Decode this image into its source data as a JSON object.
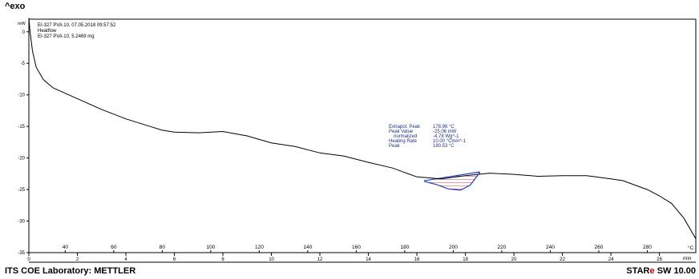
{
  "header": {
    "exo_label": "^exo"
  },
  "info": {
    "lines": [
      "EI-327 PVA 10, 07.05.2018 09:57:52",
      "Heatflow",
      "EI-327 PVA 10, 5.2469 mg"
    ]
  },
  "annotation": {
    "labels": [
      "Extrapol. Peak",
      "Peak Value",
      "normalized",
      "Heating Rate",
      "Peak"
    ],
    "values": [
      "178.96 °C",
      "-25.06 mW",
      "-4.78 Wg^-1",
      "10.00 °Cmin^-1",
      "190.53 °C"
    ]
  },
  "footer": {
    "left": "ITS COE Laboratory: METTLER",
    "right_prefix": "STAR",
    "right_mark": "e",
    "right_suffix": " SW 10.00"
  },
  "chart_data": {
    "type": "line",
    "ylabel": "mW",
    "ylim": [
      -35,
      2
    ],
    "yticks": [
      0,
      -5,
      -10,
      -15,
      -20,
      -25,
      -30,
      -35
    ],
    "time_label": "min",
    "time_ticks": [
      0,
      2,
      4,
      6,
      8,
      10,
      12,
      14,
      16,
      18,
      20,
      22,
      24,
      26
    ],
    "temp_label": "°C",
    "temp_ticks": [
      40,
      60,
      80,
      100,
      120,
      140,
      160,
      180,
      200,
      220,
      240,
      260,
      280
    ],
    "time_range": [
      0,
      27.5
    ],
    "series": [
      {
        "points_min_mW": [
          [
            0.0,
            2.2
          ],
          [
            0.05,
            0.0
          ],
          [
            0.15,
            -3.0
          ],
          [
            0.3,
            -5.6
          ],
          [
            0.6,
            -7.6
          ],
          [
            1.0,
            -8.9
          ],
          [
            2.0,
            -10.6
          ],
          [
            3.0,
            -12.3
          ],
          [
            4.0,
            -13.8
          ],
          [
            5.0,
            -15.0
          ],
          [
            5.5,
            -15.6
          ],
          [
            6.0,
            -15.9
          ],
          [
            7.0,
            -16.0
          ],
          [
            8.0,
            -15.8
          ],
          [
            9.0,
            -16.5
          ],
          [
            10.0,
            -17.6
          ],
          [
            11.0,
            -18.2
          ],
          [
            12.0,
            -19.2
          ],
          [
            13.0,
            -19.7
          ],
          [
            14.0,
            -20.7
          ],
          [
            15.0,
            -21.6
          ],
          [
            15.5,
            -22.3
          ],
          [
            16.0,
            -23.0
          ],
          [
            17.0,
            -23.3
          ],
          [
            18.0,
            -22.8
          ],
          [
            19.0,
            -22.4
          ],
          [
            20.0,
            -22.6
          ],
          [
            21.0,
            -22.9
          ],
          [
            22.0,
            -22.8
          ],
          [
            23.0,
            -22.8
          ],
          [
            24.0,
            -23.3
          ],
          [
            24.5,
            -23.6
          ],
          [
            25.0,
            -24.3
          ],
          [
            25.5,
            -25.0
          ],
          [
            26.0,
            -26.0
          ],
          [
            26.5,
            -27.2
          ],
          [
            27.0,
            -29.5
          ],
          [
            27.5,
            -32.8
          ]
        ]
      }
    ],
    "peak": {
      "baseline": [
        [
          16.3,
          -23.6
        ],
        [
          18.6,
          -22.2
        ]
      ],
      "curve": [
        [
          16.3,
          -23.7
        ],
        [
          16.8,
          -24.2
        ],
        [
          17.3,
          -24.9
        ],
        [
          17.8,
          -25.1
        ],
        [
          18.2,
          -24.3
        ],
        [
          18.6,
          -22.3
        ]
      ]
    }
  }
}
